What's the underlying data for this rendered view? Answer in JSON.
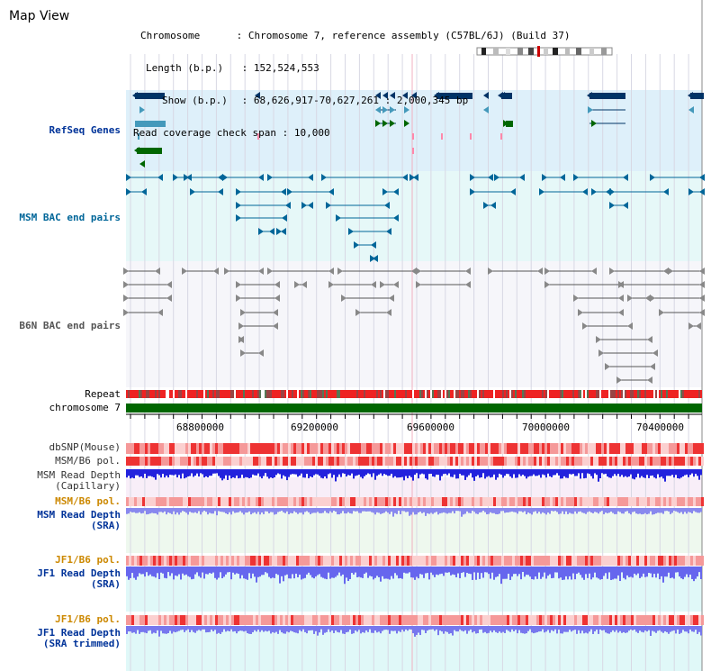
{
  "page": {
    "title": "Map View"
  },
  "info": {
    "chromosome_label": "Chromosome",
    "chromosome_value": "Chromosome 7, reference assembly (C57BL/6J) (Build 37)",
    "length_label": "Length (b.p.)",
    "length_value": "152,524,553",
    "show_label": "Show (b.p.)",
    "show_value": "68,626,917-70,627,261 : 2,000,345 bp",
    "read_span_label": "Read coverage check span",
    "read_span_value": "10,000"
  },
  "tracks": {
    "refseq": "RefSeq Genes",
    "msm_bac": "MSM BAC end pairs",
    "b6n_bac": "B6N BAC end pairs",
    "repeat": "Repeat",
    "chromosome": "chromosome 7",
    "dbsnp": "dbSNP(Mouse)",
    "msm_b6_pol_1": "MSM/B6 pol.",
    "msm_read_cap_1": "MSM Read Depth",
    "msm_read_cap_2": "(Capillary)",
    "msm_b6_pol_2": "MSM/B6 pol.",
    "msm_read_sra_1": "MSM Read Depth",
    "msm_read_sra_2": "(SRA)",
    "jf1_b6_pol_1": "JF1/B6 pol.",
    "jf1_read_sra_1": "JF1 Read Depth",
    "jf1_read_sra_2": "(SRA)",
    "jf1_b6_pol_2": "JF1/B6 pol.",
    "jf1_read_trim_1": "JF1 Read Depth",
    "jf1_read_trim_2": "(SRA trimmed)"
  },
  "axis": {
    "ticks": [
      "68800000",
      "69200000",
      "69600000",
      "70000000",
      "70400000"
    ]
  },
  "colors": {
    "refseq_bg": "#def0fa",
    "msm_bg": "#e6f8f8",
    "b6n_bg": "#f6f6fa",
    "refseq_dark": "#003366",
    "refseq_light": "#4499bb",
    "refseq_green": "#006600",
    "msm_feature": "#006699",
    "b6n_feature": "#555555",
    "chromosome_bar": "#006600",
    "track_label": "#003399",
    "orange_label": "#cc8800"
  }
}
